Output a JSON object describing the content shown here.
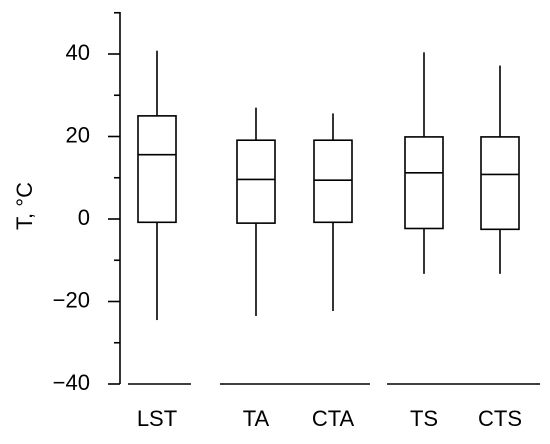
{
  "chart_data": {
    "type": "box",
    "ylabel": "T, °C",
    "ylim": [
      -40,
      45
    ],
    "y_ticks": [
      -40,
      -20,
      0,
      20,
      40
    ],
    "y_minor_ticks": [
      -30,
      -10,
      10,
      30,
      50
    ],
    "grid": false,
    "categories": [
      "LST",
      "TA",
      "CTA",
      "TS",
      "CTS"
    ],
    "groups": [
      [
        "LST"
      ],
      [
        "TA",
        "CTA"
      ],
      [
        "TS",
        "CTS"
      ]
    ],
    "boxes": [
      {
        "category": "LST",
        "whisker_low": -24.5,
        "q1": -0.8,
        "median": 15.6,
        "q3": 25.0,
        "whisker_high": 40.8
      },
      {
        "category": "TA",
        "whisker_low": -23.5,
        "q1": -1.0,
        "median": 9.6,
        "q3": 19.1,
        "whisker_high": 27.0
      },
      {
        "category": "CTA",
        "whisker_low": -22.3,
        "q1": -0.8,
        "median": 9.4,
        "q3": 19.1,
        "whisker_high": 25.6
      },
      {
        "category": "TS",
        "whisker_low": -13.3,
        "q1": -2.3,
        "median": 11.2,
        "q3": 19.9,
        "whisker_high": 40.4
      },
      {
        "category": "CTS",
        "whisker_low": -13.3,
        "q1": -2.5,
        "median": 10.8,
        "q3": 19.9,
        "whisker_high": 37.2
      }
    ]
  }
}
